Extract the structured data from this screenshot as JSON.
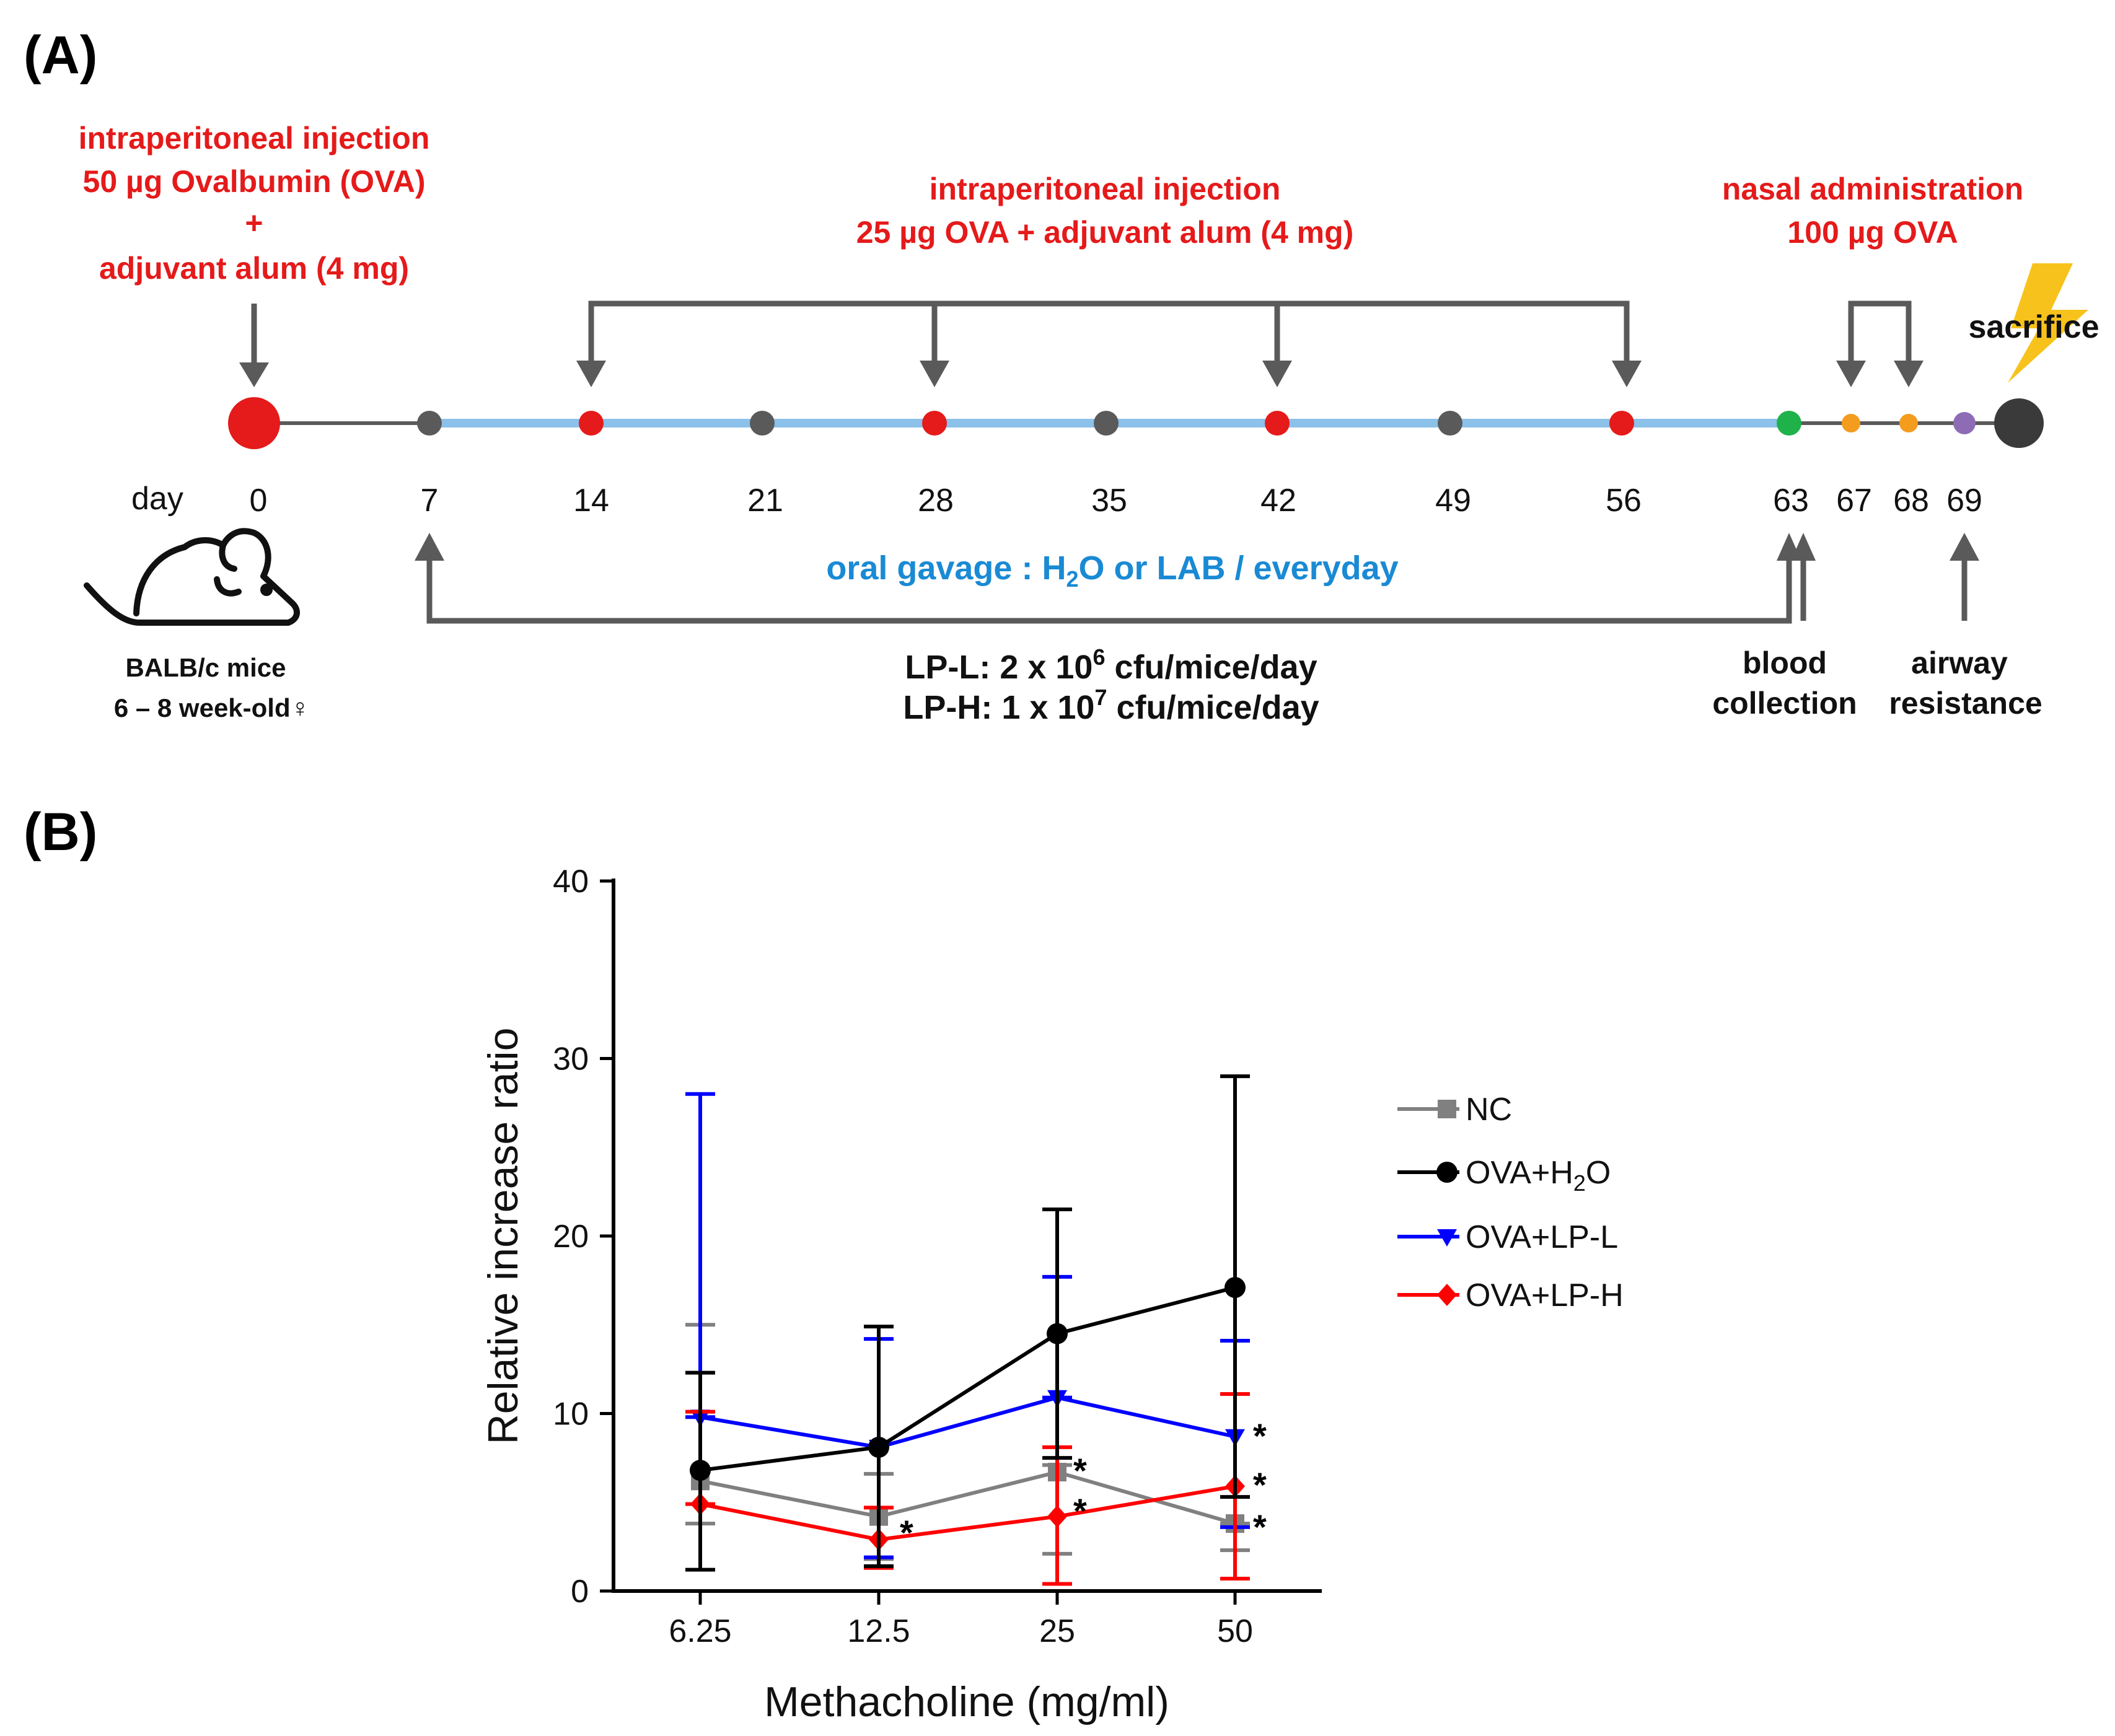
{
  "panel_a": {
    "label": "(A)",
    "first_injection": [
      "intraperitoneal injection",
      "50 µg Ovalbumin (OVA)",
      "+",
      "adjuvant alum (4 mg)"
    ],
    "boost_injection": [
      "intraperitoneal injection",
      "25 µg OVA + adjuvant alum (4 mg)"
    ],
    "nasal": [
      "nasal administration",
      "100 µg OVA"
    ],
    "sacrifice": "sacrifice",
    "day_label": "day",
    "days": [
      "0",
      "7",
      "14",
      "21",
      "28",
      "35",
      "42",
      "49",
      "56",
      "63",
      "67",
      "68",
      "69"
    ],
    "gavage_prefix": "oral gavage : H",
    "gavage_sub": "2",
    "gavage_suffix": "O or LAB / everyday",
    "mice": [
      "BALB/c mice",
      "6 – 8 week-old♀"
    ],
    "lp_l_prefix": "LP-L: 2 x 10",
    "lp_l_exp": "6",
    "lp_l_suffix": " cfu/mice/day",
    "lp_h_prefix": "LP-H: 1 x 10",
    "lp_h_exp": "7",
    "lp_h_suffix": " cfu/mice/day",
    "blood": [
      "blood",
      "collection"
    ],
    "airway": [
      "airway",
      "resistance"
    ],
    "colors": {
      "red": "#e51a1a",
      "gray": "#5a5a5a",
      "blue_line": "#8cc1ea",
      "green": "#1fb24a",
      "orange": "#f39c1e",
      "purple": "#8e6cb5",
      "black": "#3a3a3a",
      "bolt": "#f7c21b"
    }
  },
  "panel_b": {
    "label": "(B)",
    "stars": [
      "*",
      "*",
      "*",
      "*",
      "*",
      "*"
    ]
  },
  "chart_data": {
    "type": "line",
    "categories": [
      "6.25",
      "12.5",
      "25",
      "50"
    ],
    "xlabel": "Methacholine (mg/ml)",
    "ylabel": "Relative increase ratio",
    "ylim": [
      0,
      40
    ],
    "yticks": [
      "0",
      "10",
      "20",
      "30",
      "40"
    ],
    "legend_position": "right",
    "series": [
      {
        "name": "NC",
        "color": "#808080",
        "marker": "square",
        "values": [
          6.2,
          4.2,
          6.7,
          3.8
        ],
        "err_low": [
          3.8,
          1.8,
          2.1,
          2.3
        ],
        "err_high": [
          15.0,
          6.6,
          7.1,
          3.8
        ]
      },
      {
        "name": "OVA+H2O",
        "color": "#000000",
        "marker": "circle",
        "values": [
          6.8,
          8.1,
          14.5,
          17.1
        ],
        "err_low": [
          1.2,
          1.4,
          7.5,
          5.3
        ],
        "err_high": [
          12.3,
          14.9,
          21.5,
          29.0
        ]
      },
      {
        "name": "OVA+LP-L",
        "color": "#0000ff",
        "marker": "triangle-down",
        "values": [
          9.8,
          8.1,
          10.9,
          8.7
        ],
        "err_low": [
          9.8,
          1.9,
          10.9,
          3.6
        ],
        "err_high": [
          28.0,
          14.2,
          17.7,
          14.1
        ]
      },
      {
        "name": "OVA+LP-H",
        "color": "#ff0000",
        "marker": "diamond",
        "values": [
          4.9,
          2.9,
          4.2,
          5.9
        ],
        "err_low": [
          4.9,
          1.3,
          0.4,
          0.7
        ],
        "err_high": [
          10.1,
          4.7,
          8.1,
          11.1
        ]
      }
    ],
    "legend_entries": [
      {
        "prefix": "NC",
        "sub": "",
        "suffix": ""
      },
      {
        "prefix": "OVA+H",
        "sub": "2",
        "suffix": "O"
      },
      {
        "prefix": "OVA+LP-L",
        "sub": "",
        "suffix": ""
      },
      {
        "prefix": "OVA+LP-H",
        "sub": "",
        "suffix": ""
      }
    ]
  }
}
